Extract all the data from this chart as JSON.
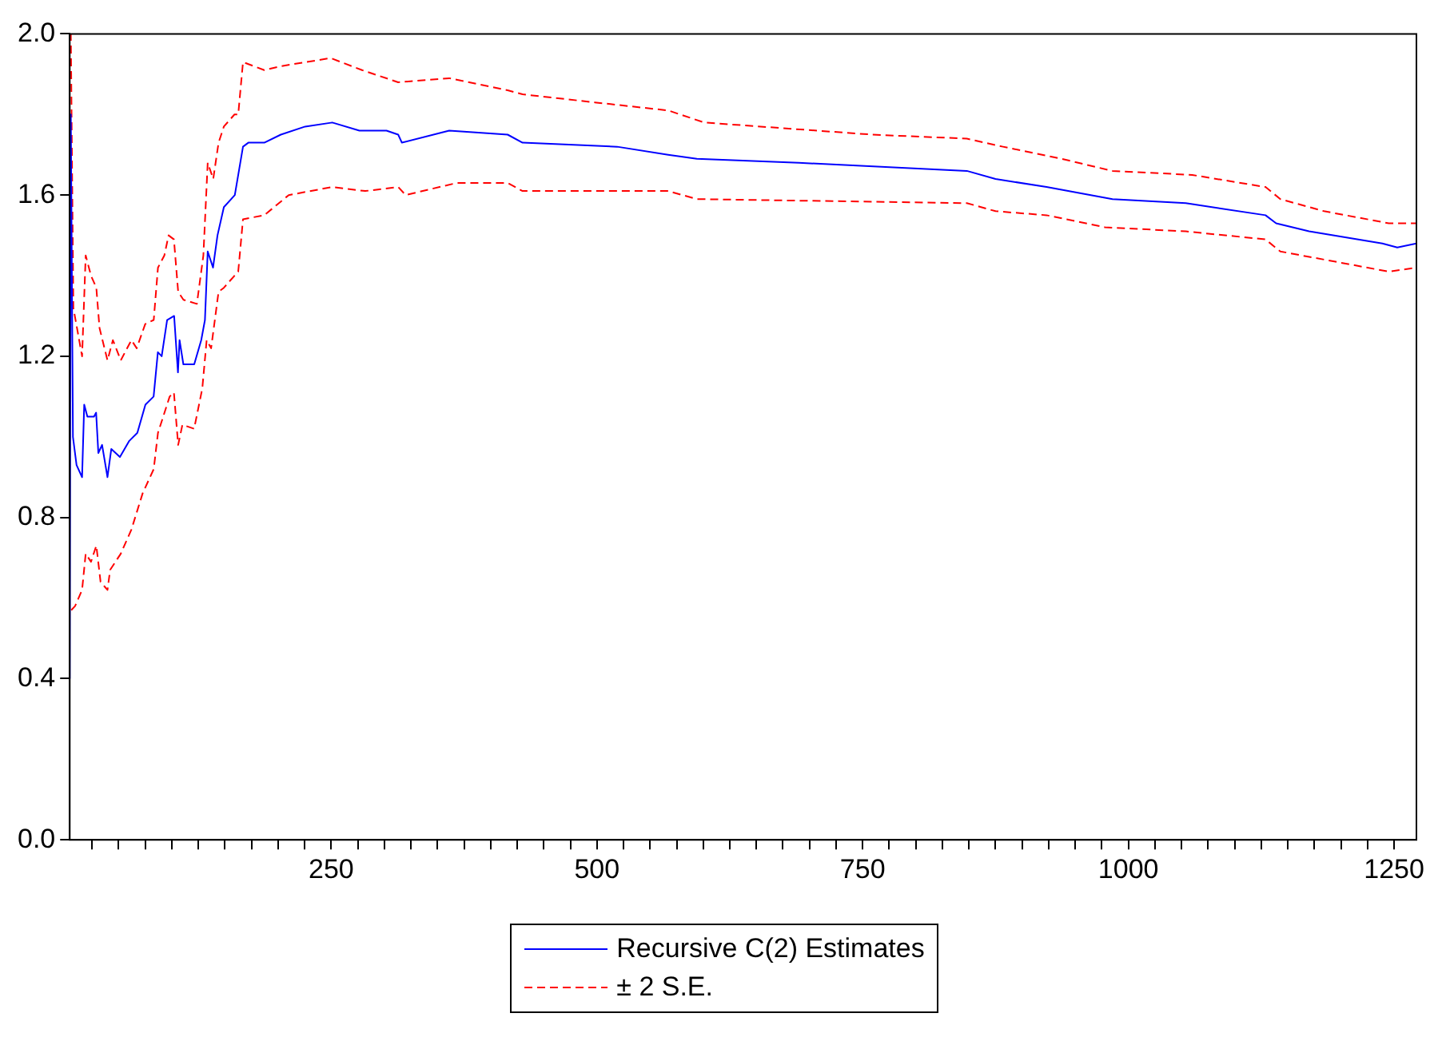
{
  "chart_data": {
    "type": "line",
    "xlim": [
      4,
      1271
    ],
    "ylim": [
      0,
      2
    ],
    "xticks": [
      {
        "value": 25,
        "label": null
      },
      {
        "value": 50,
        "label": null
      },
      {
        "value": 75,
        "label": null
      },
      {
        "value": 100,
        "label": null
      },
      {
        "value": 125,
        "label": null
      },
      {
        "value": 150,
        "label": null
      },
      {
        "value": 175,
        "label": null
      },
      {
        "value": 200,
        "label": null
      },
      {
        "value": 225,
        "label": null
      },
      250,
      {
        "value": 275,
        "label": null
      },
      {
        "value": 300,
        "label": null
      },
      {
        "value": 325,
        "label": null
      },
      {
        "value": 350,
        "label": null
      },
      {
        "value": 375,
        "label": null
      },
      {
        "value": 400,
        "label": null
      },
      {
        "value": 425,
        "label": null
      },
      {
        "value": 450,
        "label": null
      },
      {
        "value": 475,
        "label": null
      },
      500,
      {
        "value": 525,
        "label": null
      },
      {
        "value": 550,
        "label": null
      },
      {
        "value": 575,
        "label": null
      },
      {
        "value": 600,
        "label": null
      },
      {
        "value": 625,
        "label": null
      },
      {
        "value": 650,
        "label": null
      },
      {
        "value": 675,
        "label": null
      },
      {
        "value": 700,
        "label": null
      },
      {
        "value": 725,
        "label": null
      },
      750,
      {
        "value": 775,
        "label": null
      },
      {
        "value": 800,
        "label": null
      },
      {
        "value": 825,
        "label": null
      },
      {
        "value": 850,
        "label": null
      },
      {
        "value": 875,
        "label": null
      },
      {
        "value": 900,
        "label": null
      },
      {
        "value": 925,
        "label": null
      },
      {
        "value": 950,
        "label": null
      },
      {
        "value": 975,
        "label": null
      },
      1000,
      {
        "value": 1025,
        "label": null
      },
      {
        "value": 1050,
        "label": null
      },
      {
        "value": 1075,
        "label": null
      },
      {
        "value": 1100,
        "label": null
      },
      {
        "value": 1125,
        "label": null
      },
      {
        "value": 1150,
        "label": null
      },
      {
        "value": 1175,
        "label": null
      },
      {
        "value": 1200,
        "label": null
      },
      {
        "value": 1225,
        "label": null
      },
      1250
    ],
    "yticks": [
      {
        "value": 0,
        "label": "0.0"
      },
      0.4,
      0.8,
      1.2,
      1.6,
      {
        "value": 2,
        "label": "2.0"
      }
    ],
    "grid": false,
    "legend": "bottom",
    "marker": "none",
    "series": [
      {
        "name": "Recursive C(2) Estimates",
        "color": "#0000ff",
        "line_style": "solid",
        "x": [
          4,
          5,
          7,
          10.4,
          15.6,
          17.6,
          20.6,
          26.8,
          28.8,
          30.9,
          34.4,
          39.5,
          43.1,
          51.2,
          60,
          67.6,
          75.2,
          82.9,
          86.9,
          90.5,
          95.6,
          102.2,
          105.8,
          107.3,
          110.9,
          121.1,
          127.7,
          131.2,
          133.8,
          138.8,
          143,
          149,
          159.3,
          167,
          172,
          187,
          202.6,
          225.5,
          251,
          276.5,
          302,
          313,
          316.5,
          361,
          416,
          430,
          519,
          567,
          594,
          690,
          848,
          875,
          923,
          985,
          1054,
          1129,
          1139,
          1170,
          1239,
          1253,
          1271
        ],
        "values": [
          0.4,
          1.8,
          1.0,
          0.93,
          0.9,
          1.08,
          1.05,
          1.05,
          1.06,
          0.96,
          0.98,
          0.9,
          0.97,
          0.95,
          0.99,
          1.01,
          1.08,
          1.1,
          1.21,
          1.2,
          1.29,
          1.3,
          1.16,
          1.24,
          1.18,
          1.18,
          1.24,
          1.29,
          1.46,
          1.42,
          1.5,
          1.57,
          1.6,
          1.72,
          1.73,
          1.73,
          1.75,
          1.77,
          1.78,
          1.76,
          1.76,
          1.75,
          1.73,
          1.76,
          1.75,
          1.73,
          1.72,
          1.7,
          1.69,
          1.68,
          1.66,
          1.64,
          1.62,
          1.59,
          1.58,
          1.55,
          1.53,
          1.51,
          1.48,
          1.47,
          1.48
        ]
      },
      {
        "name": "± 2 S.E.",
        "color": "#ff0000",
        "line_style": "dashed",
        "x": [
          4,
          5,
          7.4,
          15.6,
          19,
          24,
          29,
          32,
          39.5,
          44.6,
          52,
          62,
          67,
          75,
          83,
          87,
          93,
          97,
          102,
          106,
          111,
          123.6,
          129.7,
          133.8,
          139,
          144,
          149,
          159,
          162.5,
          167,
          187,
          203,
          249.5,
          279,
          313,
          361,
          416,
          430,
          498,
          567,
          601,
          759,
          848,
          882,
          937,
          985,
          1060,
          1129,
          1143,
          1184,
          1245,
          1271
        ],
        "values": [
          2.0,
          2.0,
          1.32,
          1.2,
          1.45,
          1.4,
          1.37,
          1.27,
          1.19,
          1.24,
          1.19,
          1.24,
          1.22,
          1.28,
          1.29,
          1.42,
          1.45,
          1.5,
          1.49,
          1.36,
          1.34,
          1.33,
          1.45,
          1.68,
          1.64,
          1.73,
          1.77,
          1.8,
          1.8,
          1.93,
          1.91,
          1.92,
          1.94,
          1.91,
          1.88,
          1.89,
          1.86,
          1.85,
          1.83,
          1.81,
          1.78,
          1.75,
          1.74,
          1.72,
          1.69,
          1.66,
          1.65,
          1.62,
          1.59,
          1.56,
          1.53,
          1.53
        ]
      },
      {
        "color": "#ff0000",
        "line_style": "dashed",
        "x": [
          5.4,
          9,
          15.6,
          19,
          24,
          29,
          33,
          39.5,
          42,
          52,
          62,
          72.6,
          83,
          87,
          98,
          102,
          106,
          110,
          121,
          128.7,
          132.8,
          137,
          144,
          149,
          159,
          162.5,
          167,
          187,
          210,
          251,
          282,
          313,
          320,
          368,
          416,
          430,
          567,
          594,
          848,
          875,
          923,
          978,
          1054,
          1129,
          1143,
          1184,
          1245,
          1271
        ],
        "values": [
          0.57,
          0.58,
          0.62,
          0.71,
          0.69,
          0.73,
          0.64,
          0.62,
          0.67,
          0.71,
          0.77,
          0.86,
          0.92,
          1.01,
          1.1,
          1.11,
          0.98,
          1.03,
          1.02,
          1.12,
          1.24,
          1.22,
          1.36,
          1.37,
          1.4,
          1.41,
          1.54,
          1.55,
          1.6,
          1.62,
          1.61,
          1.62,
          1.6,
          1.63,
          1.63,
          1.61,
          1.61,
          1.59,
          1.58,
          1.56,
          1.55,
          1.52,
          1.51,
          1.49,
          1.46,
          1.44,
          1.41,
          1.42
        ]
      }
    ]
  }
}
